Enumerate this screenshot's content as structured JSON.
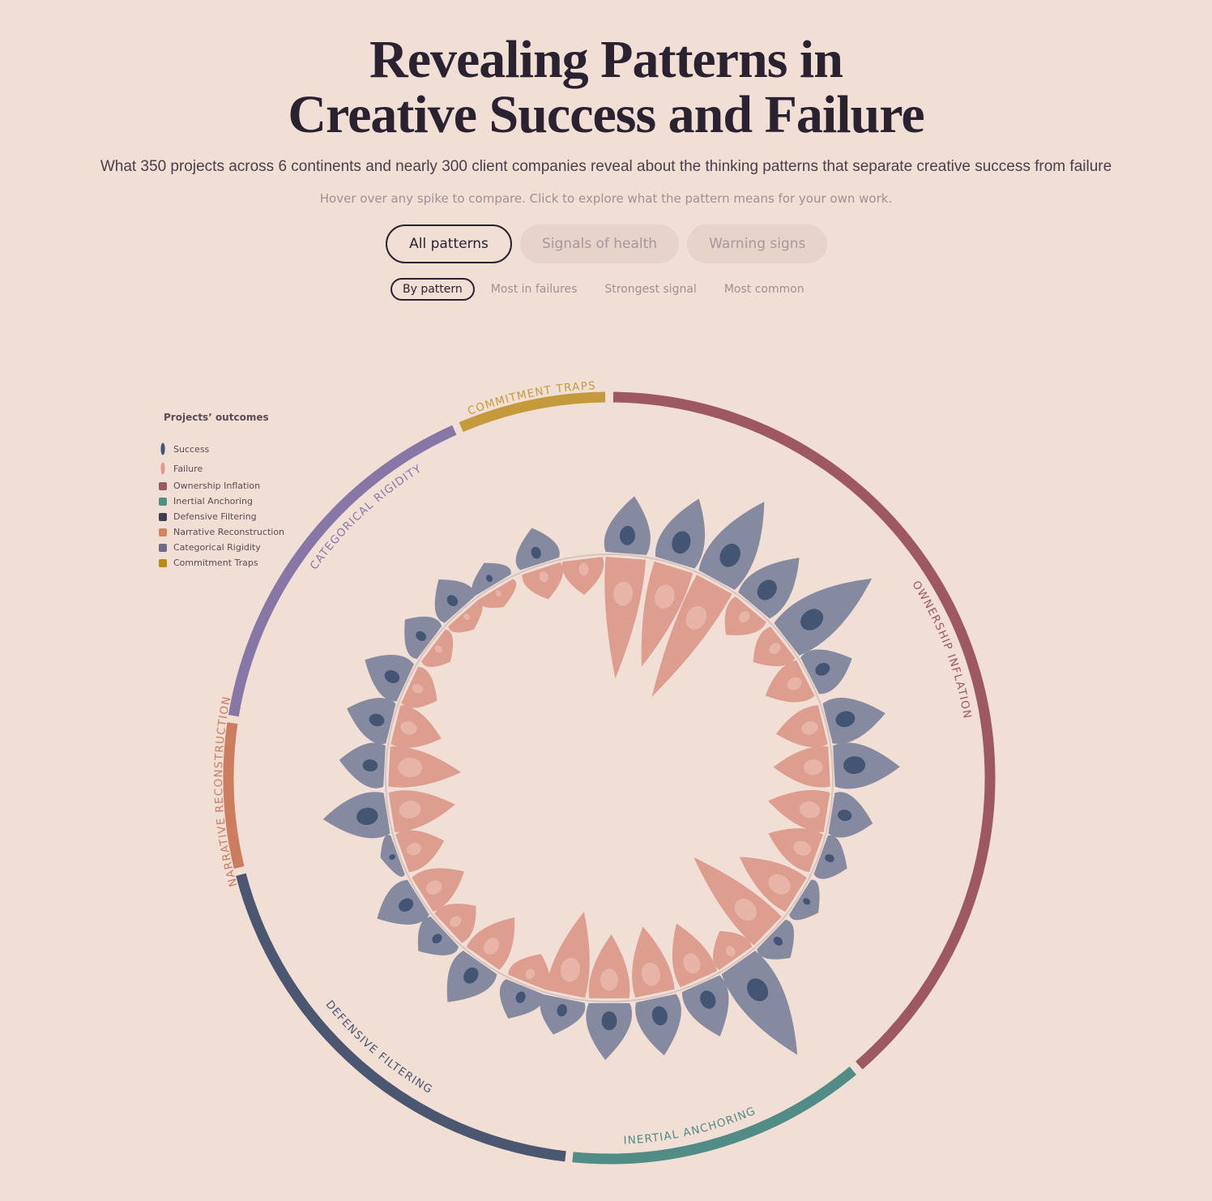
{
  "header": {
    "title_line1": "Revealing Patterns in",
    "title_line2": "Creative Success and Failure",
    "subtitle": "What 350 projects across 6 continents and nearly 300 client companies reveal about the thinking patterns that separate creative success from failure",
    "hint": "Hover over any spike to compare. Click to explore what the pattern means for your own work."
  },
  "filters": [
    {
      "label": "All patterns",
      "active": true
    },
    {
      "label": "Signals of health",
      "active": false
    },
    {
      "label": "Warning signs",
      "active": false
    }
  ],
  "sorts": [
    {
      "label": "By pattern",
      "active": true
    },
    {
      "label": "Most in failures",
      "active": false
    },
    {
      "label": "Strongest signal",
      "active": false
    },
    {
      "label": "Most common",
      "active": false
    }
  ],
  "legend": {
    "title": "Projects’ outcomes",
    "outcomes": [
      {
        "label": "Success",
        "color": "#435573"
      },
      {
        "label": "Failure",
        "color": "#e09a8d"
      }
    ],
    "patterns": [
      {
        "label": "Ownership Inflation",
        "color": "#9e5862"
      },
      {
        "label": "Inertial Anchoring",
        "color": "#4f8f88"
      },
      {
        "label": "Defensive Filtering",
        "color": "#3e3f52"
      },
      {
        "label": "Narrative Reconstruction",
        "color": "#d4835f"
      },
      {
        "label": "Categorical Rigidity",
        "color": "#6b6b8a"
      },
      {
        "label": "Commitment Traps",
        "color": "#bf8a12"
      }
    ]
  },
  "chart_data": {
    "type": "radial",
    "groups": [
      {
        "label": "OWNERSHIP INFLATION",
        "color": "#9e5862"
      },
      {
        "label": "INERTIAL ANCHORING",
        "color": "#518c86"
      },
      {
        "label": "DEFENSIVE FILTERING",
        "color": "#4b5670"
      },
      {
        "label": "NARRATIVE RECONSTRUCTION",
        "color": "#cc7c5f"
      },
      {
        "label": "CATEGORICAL RIGIDITY",
        "color": "#8877a6"
      },
      {
        "label": "COMMITMENT TRAPS",
        "color": "#c49a3c"
      }
    ],
    "series": [
      {
        "name": "Success",
        "color": "#858aa0"
      },
      {
        "name": "Failure",
        "color": "#dd9d8f"
      }
    ],
    "spikes": [
      {
        "group": 0,
        "success": 70,
        "failure": 150
      },
      {
        "group": 0,
        "success": 83,
        "failure": 130
      },
      {
        "group": 0,
        "success": 112,
        "failure": 160
      },
      {
        "group": 0,
        "success": 80,
        "failure": 45
      },
      {
        "group": 0,
        "success": 128,
        "failure": 45
      },
      {
        "group": 0,
        "success": 55,
        "failure": 55
      },
      {
        "group": 0,
        "success": 71,
        "failure": 60
      },
      {
        "group": 0,
        "success": 80,
        "failure": 70
      },
      {
        "group": 0,
        "success": 51,
        "failure": 75
      },
      {
        "group": 0,
        "success": 35,
        "failure": 65
      },
      {
        "group": 0,
        "success": 28,
        "failure": 85
      },
      {
        "group": 0,
        "success": 36,
        "failure": 130
      },
      {
        "group": 1,
        "success": 134,
        "failure": 40
      },
      {
        "group": 1,
        "success": 68,
        "failure": 75
      },
      {
        "group": 1,
        "success": 70,
        "failure": 85
      },
      {
        "group": 1,
        "success": 69,
        "failure": 80
      },
      {
        "group": 2,
        "success": 45,
        "failure": 105
      },
      {
        "group": 2,
        "success": 43,
        "failure": 40
      },
      {
        "group": 2,
        "success": 62,
        "failure": 65
      },
      {
        "group": 2,
        "success": 39,
        "failure": 45
      },
      {
        "group": 2,
        "success": 56,
        "failure": 60
      },
      {
        "group": 3,
        "success": 20,
        "failure": 55
      },
      {
        "group": 3,
        "success": 78,
        "failure": 80
      },
      {
        "group": 3,
        "success": 55,
        "failure": 90
      },
      {
        "group": 4,
        "success": 56,
        "failure": 60
      },
      {
        "group": 4,
        "success": 56,
        "failure": 40
      },
      {
        "group": 4,
        "success": 40,
        "failure": 30
      },
      {
        "group": 4,
        "success": 44,
        "failure": 25
      },
      {
        "group": 4,
        "success": 28,
        "failure": 25
      },
      {
        "group": 5,
        "success": 44,
        "failure": 40
      },
      {
        "group": 5,
        "success": 0,
        "failure": 45
      }
    ]
  }
}
